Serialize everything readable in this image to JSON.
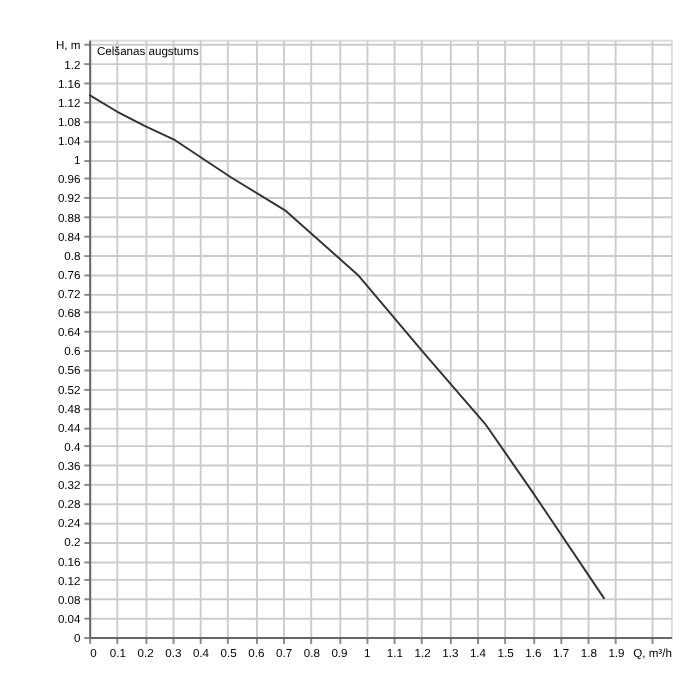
{
  "chart_data": {
    "type": "line",
    "title": "Celšanas augstums",
    "x": [
      0,
      0.1,
      0.2,
      0.31,
      0.51,
      0.71,
      0.97,
      1.2,
      1.43,
      1.6,
      1.86
    ],
    "series": [
      {
        "color": "#333333",
        "values": [
          1.135,
          1.1,
          1.07,
          1.04,
          0.963,
          0.892,
          0.758,
          0.6,
          0.446,
          0.304,
          0.08
        ]
      }
    ],
    "xlim": [
      0,
      2.1
    ],
    "xticks": [
      0,
      0.1,
      0.2,
      0.3,
      0.4,
      0.5,
      0.6,
      0.7,
      0.8,
      0.9,
      1,
      1.1,
      1.2,
      1.3,
      1.4,
      1.5,
      1.6,
      1.7,
      1.8,
      1.9,
      {
        "value": 2.03,
        "label": "Q, m³/h"
      }
    ],
    "ylim": [
      0,
      1.25
    ],
    "yticks": [
      0,
      0.04,
      0.08,
      0.12,
      0.16,
      0.2,
      0.24,
      0.28,
      0.32,
      0.36,
      0.4,
      0.44,
      0.48,
      0.52,
      0.56,
      0.6,
      0.64,
      0.68,
      0.72,
      0.76,
      0.8,
      0.84,
      0.88,
      0.92,
      0.96,
      1,
      1.04,
      1.08,
      1.12,
      1.16,
      1.2,
      {
        "value": 1.24,
        "label": "H, m"
      }
    ],
    "grid": true,
    "marker": "none",
    "line_style": "solid"
  }
}
